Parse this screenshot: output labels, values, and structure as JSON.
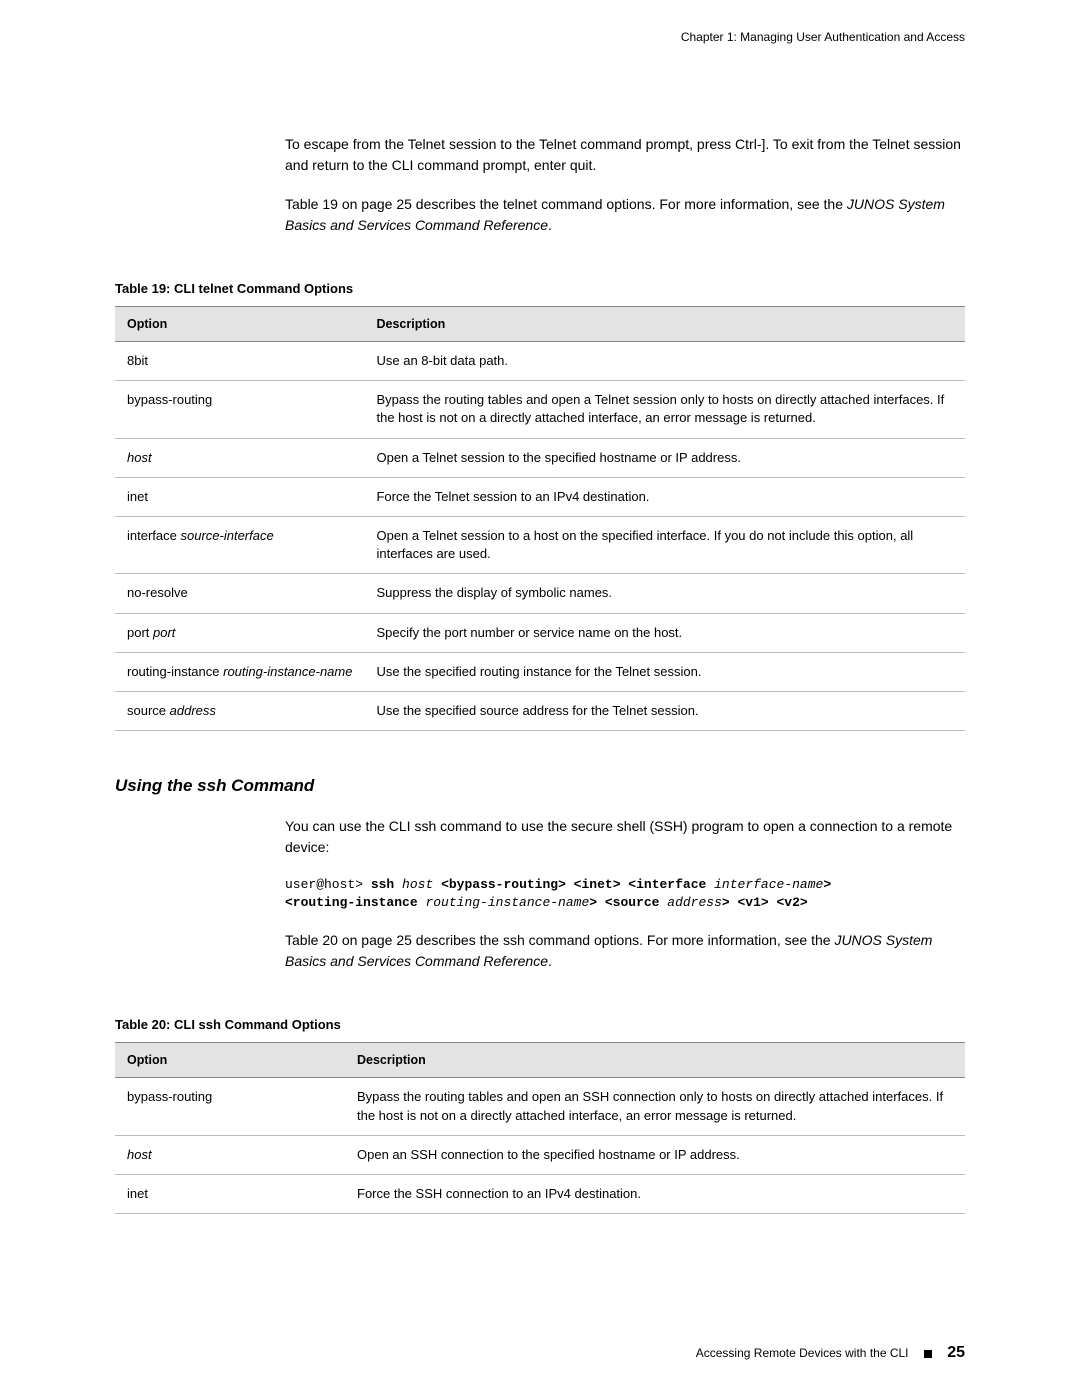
{
  "header": "Chapter 1: Managing User Authentication and Access",
  "intro_p1_a": "To escape from the Telnet session to the Telnet command prompt, press Ctrl-]. To exit from the Telnet session and return to the CLI command prompt, enter ",
  "intro_p1_quit": "quit",
  "intro_p1_b": ".",
  "intro_p2_a": "Table 19 on page 25 describes the ",
  "intro_p2_cmd": "telnet",
  "intro_p2_b": " command options. For more information, see the ",
  "intro_p2_ref": "JUNOS System Basics and Services Command Reference",
  "intro_p2_c": ".",
  "table19_title": "Table 19: CLI telnet Command Options",
  "th_option": "Option",
  "th_desc": "Description",
  "t19": [
    {
      "opt_a": "8bit",
      "opt_b": "",
      "desc": "Use an 8-bit data path."
    },
    {
      "opt_a": "bypass-routing",
      "opt_b": "",
      "desc": "Bypass the routing tables and open a Telnet session only to hosts on directly attached interfaces. If the host is not on a directly attached interface, an error message is returned."
    },
    {
      "opt_a": "",
      "opt_b": "host",
      "desc": "Open a Telnet session to the specified hostname or IP address."
    },
    {
      "opt_a": "inet",
      "opt_b": "",
      "desc": "Force the Telnet session to an IPv4 destination."
    },
    {
      "opt_a": "interface ",
      "opt_b": "source-interface",
      "desc": "Open a Telnet session to a host on the specified interface. If you do not include this option, all interfaces are used."
    },
    {
      "opt_a": "no-resolve",
      "opt_b": "",
      "desc": "Suppress the display of symbolic names."
    },
    {
      "opt_a": "port ",
      "opt_b": "port",
      "desc": "Specify the port number or service name on the host."
    },
    {
      "opt_a": "routing-instance ",
      "opt_b": "routing-instance-name",
      "desc": "Use the specified routing instance for the Telnet session."
    },
    {
      "opt_a": "source ",
      "opt_b": "address",
      "desc": "Use the specified source address for the Telnet session."
    }
  ],
  "ssh_title": "Using the ssh Command",
  "ssh_p1_a": "You can use the CLI ",
  "ssh_p1_cmd": "ssh",
  "ssh_p1_b": " command to use the secure shell (SSH) program to open a connection to a remote device:",
  "code_prompt": "user@host> ",
  "code_ssh": "ssh ",
  "code_host": "host ",
  "code_l1": "<bypass-routing> <inet> <interface ",
  "code_ifn": "interface-name",
  "code_l1b": ">",
  "code_l2a": "<routing-instance ",
  "code_rin": "routing-instance-name",
  "code_l2b": "> <source ",
  "code_addr": "address",
  "code_l2c": "> <v1> <v2>",
  "ssh_p2_a": "Table 20 on page 25 describes the ",
  "ssh_p2_cmd": "ssh",
  "ssh_p2_b": " command options. For more information, see the ",
  "ssh_p2_ref": "JUNOS System Basics and Services Command Reference",
  "ssh_p2_c": ".",
  "table20_title": "Table 20: CLI ssh Command Options",
  "t20": [
    {
      "opt_a": "bypass-routing",
      "opt_b": "",
      "desc": "Bypass the routing tables and open an SSH connection only to hosts on directly attached interfaces. If the host is not on a directly attached interface, an error message is returned."
    },
    {
      "opt_a": "",
      "opt_b": "host",
      "desc": "Open an SSH connection to the specified hostname or IP address."
    },
    {
      "opt_a": "inet",
      "opt_b": "",
      "desc": "Force the SSH connection to an IPv4 destination."
    }
  ],
  "footer_text": "Accessing Remote Devices with the CLI",
  "footer_page": "25"
}
